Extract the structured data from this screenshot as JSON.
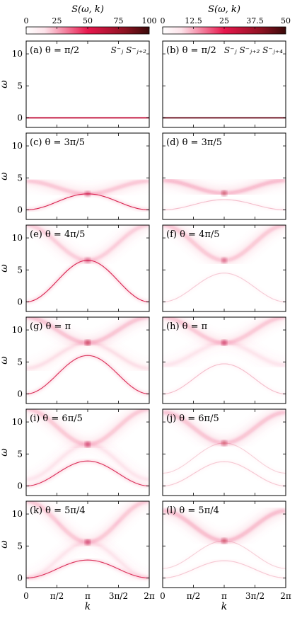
{
  "colorbars": [
    {
      "label": "S(ω, k)",
      "ticks": [
        "0",
        "25",
        "50",
        "75",
        "100"
      ],
      "range": [
        0,
        100
      ]
    },
    {
      "label": "S(ω, k)",
      "ticks": [
        "0",
        "12.5",
        "25",
        "37.5",
        "50"
      ],
      "range": [
        0,
        50
      ]
    }
  ],
  "colors": {
    "low": "#ffffff",
    "mid": "#e8174d",
    "high": "#3a0a0a",
    "frame": "#000000"
  },
  "column_labels": [
    "S⁻ⱼ S⁻ⱼ₊₂",
    "S⁻ⱼ S⁻ⱼ₊₂ S⁻ⱼ₊₄"
  ],
  "x_axis": {
    "label": "k",
    "ticks": [
      "0",
      "π/2",
      "π",
      "3π/2",
      "2π"
    ],
    "range": [
      0,
      6.283
    ]
  },
  "y_axis": {
    "label": "ω",
    "ticks": [
      "0",
      "5",
      "10"
    ],
    "range": [
      -1.5,
      12
    ]
  },
  "chart_data": {
    "type": "heatmap",
    "title": "",
    "xlabel": "k",
    "ylabel": "ω",
    "xlim": [
      0,
      6.283
    ],
    "ylim": [
      -1.5,
      12
    ],
    "panels": [
      {
        "label": "(a) θ = π/2",
        "col": 0,
        "row": 0,
        "features": [
          {
            "kind": "flat",
            "w": 0,
            "i": 1.0
          }
        ]
      },
      {
        "label": "(b) θ = π/2",
        "col": 1,
        "row": 0,
        "features": [
          {
            "kind": "flat",
            "w": 0,
            "i": 1.0
          }
        ]
      },
      {
        "label": "(c) θ = 3π/5",
        "col": 0,
        "row": 1,
        "features": [
          {
            "kind": "arc",
            "w0": 0,
            "wpi": 2.5,
            "i": 0.9
          },
          {
            "kind": "arc",
            "w0": 4.5,
            "wpi": 2.5,
            "i": 0.45,
            "fan": true
          }
        ]
      },
      {
        "label": "(d) θ = 3π/5",
        "col": 1,
        "row": 1,
        "features": [
          {
            "kind": "arc",
            "w0": 4.6,
            "wpi": 2.6,
            "i": 0.55,
            "fan": true
          },
          {
            "kind": "arc",
            "w0": 0,
            "wpi": 1.6,
            "i": 0.25
          }
        ]
      },
      {
        "label": "(e) θ = 4π/5",
        "col": 0,
        "row": 2,
        "features": [
          {
            "kind": "arc",
            "w0": 0,
            "wpi": 6.5,
            "i": 0.9
          },
          {
            "kind": "arc",
            "w0": 12,
            "wpi": 6.5,
            "i": 0.4,
            "fan": true
          }
        ]
      },
      {
        "label": "(f) θ = 4π/5",
        "col": 1,
        "row": 2,
        "features": [
          {
            "kind": "arc",
            "w0": 12,
            "wpi": 6.5,
            "i": 0.45,
            "fan": true
          },
          {
            "kind": "arc",
            "w0": 0,
            "wpi": 4.5,
            "i": 0.2
          }
        ]
      },
      {
        "label": "(g) θ = π",
        "col": 0,
        "row": 3,
        "features": [
          {
            "kind": "arc",
            "w0": 0,
            "wpi": 6.0,
            "i": 0.85
          },
          {
            "kind": "arc",
            "w0": 12,
            "wpi": 8.0,
            "i": 0.5,
            "fan": true
          },
          {
            "kind": "arc",
            "w0": 4,
            "wpi": 8.0,
            "i": 0.25,
            "fan": true
          }
        ]
      },
      {
        "label": "(h) θ = π",
        "col": 1,
        "row": 3,
        "features": [
          {
            "kind": "arc",
            "w0": 12,
            "wpi": 8.0,
            "i": 0.45,
            "fan": true
          },
          {
            "kind": "arc",
            "w0": 0,
            "wpi": 4.7,
            "i": 0.25
          },
          {
            "kind": "arc",
            "w0": 4.5,
            "wpi": 8.0,
            "i": 0.2,
            "fan": true
          }
        ]
      },
      {
        "label": "(i) θ = 6π/5",
        "col": 0,
        "row": 4,
        "features": [
          {
            "kind": "arc",
            "w0": 0,
            "wpi": 3.9,
            "i": 0.85
          },
          {
            "kind": "arc",
            "w0": 12,
            "wpi": 6.5,
            "i": 0.45,
            "fan": true
          },
          {
            "kind": "arc",
            "w0": 1,
            "wpi": 6.5,
            "i": 0.2,
            "fan": true
          }
        ]
      },
      {
        "label": "(j) θ = 6π/5",
        "col": 1,
        "row": 4,
        "features": [
          {
            "kind": "arc",
            "w0": 11.5,
            "wpi": 6.7,
            "i": 0.5,
            "fan": true
          },
          {
            "kind": "arc",
            "w0": 0,
            "wpi": 3.8,
            "i": 0.22
          },
          {
            "kind": "arc",
            "w0": 2,
            "wpi": 6.7,
            "i": 0.18
          }
        ]
      },
      {
        "label": "(k) θ = 5π/4",
        "col": 0,
        "row": 5,
        "features": [
          {
            "kind": "arc",
            "w0": 0,
            "wpi": 2.8,
            "i": 0.85
          },
          {
            "kind": "arc",
            "w0": 12,
            "wpi": 5.6,
            "i": 0.45,
            "fan": true
          },
          {
            "kind": "arc",
            "w0": 0,
            "wpi": 5.6,
            "i": 0.2,
            "fan": true
          }
        ]
      },
      {
        "label": "(l) θ = 5π/4",
        "col": 1,
        "row": 5,
        "features": [
          {
            "kind": "arc",
            "w0": 10.5,
            "wpi": 5.8,
            "i": 0.55,
            "fan": true
          },
          {
            "kind": "arc",
            "w0": 0,
            "wpi": 2.7,
            "i": 0.22
          },
          {
            "kind": "arc",
            "w0": 1.5,
            "wpi": 5.8,
            "i": 0.18
          }
        ]
      }
    ]
  }
}
